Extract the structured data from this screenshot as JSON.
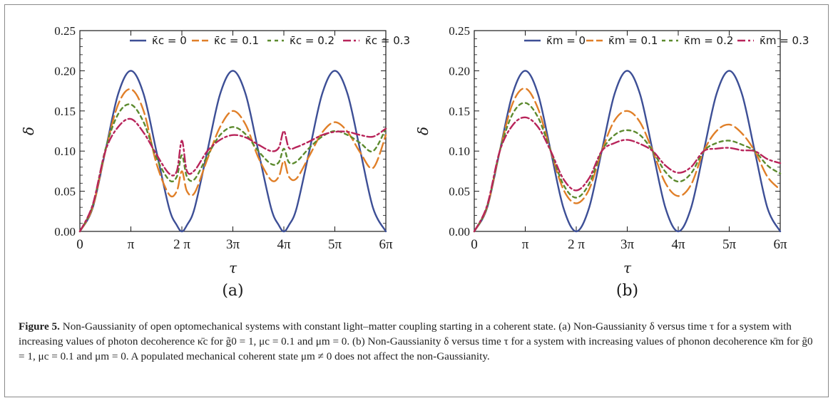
{
  "chart_data": [
    {
      "type": "line",
      "panel_label": "(a)",
      "xlabel": "τ",
      "ylabel": "δ",
      "xlim": [
        0,
        6.0
      ],
      "ylim": [
        0,
        0.25
      ],
      "x_units": "π",
      "xtick_labels": [
        "0",
        "π",
        "2 π",
        "3π",
        "4π",
        "5π",
        "6π"
      ],
      "ytick_labels": [
        "0.00",
        "0.05",
        "0.10",
        "0.15",
        "0.20",
        "0.25"
      ],
      "legend_position": "top",
      "x": [
        0,
        0.25,
        0.5,
        0.75,
        1.0,
        1.25,
        1.5,
        1.75,
        1.9,
        2.0,
        2.1,
        2.25,
        2.5,
        2.75,
        3.0,
        3.25,
        3.5,
        3.75,
        3.9,
        4.0,
        4.1,
        4.25,
        4.5,
        4.75,
        5.0,
        5.25,
        5.5,
        5.75,
        6.0
      ],
      "series": [
        {
          "name": "κ̄c = 0",
          "color": "#3d4f96",
          "dash": "solid",
          "y": [
            0,
            0.029,
            0.1,
            0.171,
            0.2,
            0.171,
            0.1,
            0.029,
            0.0078,
            0,
            0.0078,
            0.029,
            0.1,
            0.171,
            0.2,
            0.171,
            0.1,
            0.029,
            0.0078,
            0,
            0.0078,
            0.029,
            0.1,
            0.171,
            0.2,
            0.171,
            0.1,
            0.029,
            0
          ]
        },
        {
          "name": "κ̄c = 0.1",
          "color": "#e07f28",
          "dash": "long",
          "y": [
            0,
            0.03,
            0.1,
            0.158,
            0.177,
            0.15,
            0.085,
            0.046,
            0.05,
            0.075,
            0.05,
            0.048,
            0.09,
            0.13,
            0.15,
            0.133,
            0.092,
            0.064,
            0.068,
            0.088,
            0.068,
            0.066,
            0.094,
            0.123,
            0.136,
            0.124,
            0.098,
            0.079,
            0.12
          ]
        },
        {
          "name": "κ̄c = 0.2",
          "color": "#5c8a2e",
          "dash": "short",
          "y": [
            0,
            0.032,
            0.102,
            0.146,
            0.158,
            0.136,
            0.092,
            0.064,
            0.068,
            0.095,
            0.068,
            0.065,
            0.094,
            0.12,
            0.13,
            0.121,
            0.1,
            0.084,
            0.086,
            0.103,
            0.086,
            0.087,
            0.104,
            0.118,
            0.125,
            0.12,
            0.11,
            0.1,
            0.128
          ]
        },
        {
          "name": "κ̄c = 0.3",
          "color": "#b8245a",
          "dash": "dotdash",
          "y": [
            0,
            0.033,
            0.1,
            0.13,
            0.14,
            0.123,
            0.096,
            0.072,
            0.075,
            0.113,
            0.075,
            0.076,
            0.1,
            0.114,
            0.12,
            0.117,
            0.108,
            0.1,
            0.104,
            0.125,
            0.104,
            0.105,
            0.112,
            0.12,
            0.124,
            0.124,
            0.12,
            0.118,
            0.128
          ]
        }
      ]
    },
    {
      "type": "line",
      "panel_label": "(b)",
      "xlabel": "τ",
      "ylabel": "δ",
      "xlim": [
        0,
        6.0
      ],
      "ylim": [
        0,
        0.25
      ],
      "x_units": "π",
      "xtick_labels": [
        "0",
        "π",
        "2 π",
        "3π",
        "4π",
        "5π",
        "6π"
      ],
      "ytick_labels": [
        "0.00",
        "0.05",
        "0.10",
        "0.15",
        "0.20",
        "0.25"
      ],
      "legend_position": "top",
      "x": [
        0,
        0.25,
        0.5,
        0.75,
        1.0,
        1.25,
        1.5,
        1.75,
        2.0,
        2.25,
        2.5,
        2.75,
        3.0,
        3.25,
        3.5,
        3.75,
        4.0,
        4.25,
        4.5,
        4.75,
        5.0,
        5.25,
        5.5,
        5.75,
        6.0
      ],
      "series": [
        {
          "name": "κ̄m = 0",
          "color": "#3d4f96",
          "dash": "solid",
          "y": [
            0,
            0.029,
            0.1,
            0.171,
            0.2,
            0.171,
            0.1,
            0.029,
            0,
            0.029,
            0.1,
            0.171,
            0.2,
            0.171,
            0.1,
            0.029,
            0,
            0.029,
            0.1,
            0.171,
            0.2,
            0.171,
            0.1,
            0.029,
            0
          ]
        },
        {
          "name": "κ̄m = 0.1",
          "color": "#e07f28",
          "dash": "long",
          "y": [
            0,
            0.03,
            0.1,
            0.159,
            0.178,
            0.153,
            0.1,
            0.052,
            0.035,
            0.052,
            0.1,
            0.138,
            0.15,
            0.136,
            0.1,
            0.06,
            0.044,
            0.058,
            0.1,
            0.125,
            0.133,
            0.122,
            0.1,
            0.068,
            0.052
          ]
        },
        {
          "name": "κ̄m = 0.2",
          "color": "#5c8a2e",
          "dash": "short",
          "y": [
            0,
            0.031,
            0.1,
            0.146,
            0.16,
            0.142,
            0.1,
            0.058,
            0.042,
            0.059,
            0.1,
            0.12,
            0.126,
            0.12,
            0.1,
            0.074,
            0.062,
            0.072,
            0.1,
            0.11,
            0.113,
            0.108,
            0.1,
            0.082,
            0.072
          ]
        },
        {
          "name": "κ̄m = 0.3",
          "color": "#b8245a",
          "dash": "dotdash",
          "y": [
            0,
            0.032,
            0.1,
            0.132,
            0.142,
            0.13,
            0.1,
            0.065,
            0.051,
            0.066,
            0.1,
            0.11,
            0.114,
            0.109,
            0.1,
            0.082,
            0.073,
            0.08,
            0.1,
            0.103,
            0.104,
            0.101,
            0.1,
            0.09,
            0.085
          ]
        }
      ]
    }
  ],
  "caption": {
    "label": "Figure 5.",
    "text": " Non-Gaussianity of open optomechanical systems with constant light–matter coupling starting in a coherent state. (a) Non-Gaussianity δ versus time τ for a system with increasing values of photon decoherence κ̄c for g̃0 = 1, μc = 0.1 and μm = 0. (b) Non-Gaussianity δ versus time τ for a system with increasing values of phonon decoherence κ̄m for g̃0 = 1, μc = 0.1 and μm = 0. A populated mechanical coherent state μm ≠ 0 does not affect the non-Gaussianity."
  }
}
